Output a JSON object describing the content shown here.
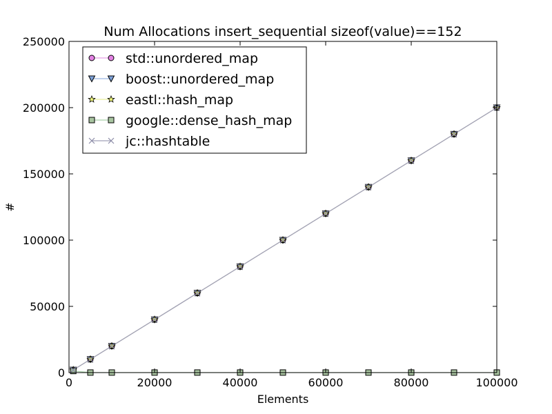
{
  "chart_data": {
    "type": "line",
    "title": "Num Allocations insert_sequential sizeof(value)==152",
    "xlabel": "Elements",
    "ylabel": "#",
    "xlim": [
      0,
      100000
    ],
    "ylim": [
      0,
      250000
    ],
    "xticks": [
      0,
      20000,
      40000,
      60000,
      80000,
      100000
    ],
    "yticks": [
      0,
      50000,
      100000,
      150000,
      200000,
      250000
    ],
    "grid": false,
    "legend_position": "top-left",
    "x": [
      1000,
      5000,
      10000,
      20000,
      30000,
      40000,
      50000,
      60000,
      70000,
      80000,
      90000,
      100000
    ],
    "series": [
      {
        "name": "std::unordered_map",
        "marker": "circle",
        "line_color": "#e7a0e7",
        "marker_fill": "#e382e3",
        "values": [
          2000,
          10000,
          20000,
          40000,
          60000,
          80000,
          100000,
          120000,
          140000,
          160000,
          180000,
          200000
        ]
      },
      {
        "name": "boost::unordered_map",
        "marker": "triangle-down",
        "line_color": "#9ab6e2",
        "marker_fill": "#7da1d8",
        "values": [
          2000,
          10000,
          20000,
          40000,
          60000,
          80000,
          100000,
          120000,
          140000,
          160000,
          180000,
          200000
        ]
      },
      {
        "name": "eastl::hash_map",
        "marker": "star",
        "line_color": "#e8ee9a",
        "marker_fill": "#eef57a",
        "values": [
          2000,
          10000,
          20000,
          40000,
          60000,
          80000,
          100000,
          120000,
          140000,
          160000,
          180000,
          200000
        ]
      },
      {
        "name": "google::dense_hash_map",
        "marker": "square",
        "line_color": "#a9d1a9",
        "marker_fill": "#a8c4a0",
        "values": [
          1200,
          40,
          40,
          40,
          40,
          40,
          40,
          40,
          40,
          40,
          40,
          40
        ]
      },
      {
        "name": "jc::hashtable",
        "marker": "x",
        "line_color": "#a0a0b8",
        "marker_fill": "#8a8aa6",
        "values": [
          2000,
          10000,
          20000,
          40000,
          60000,
          80000,
          100000,
          120000,
          140000,
          160000,
          180000,
          200000
        ]
      }
    ]
  }
}
